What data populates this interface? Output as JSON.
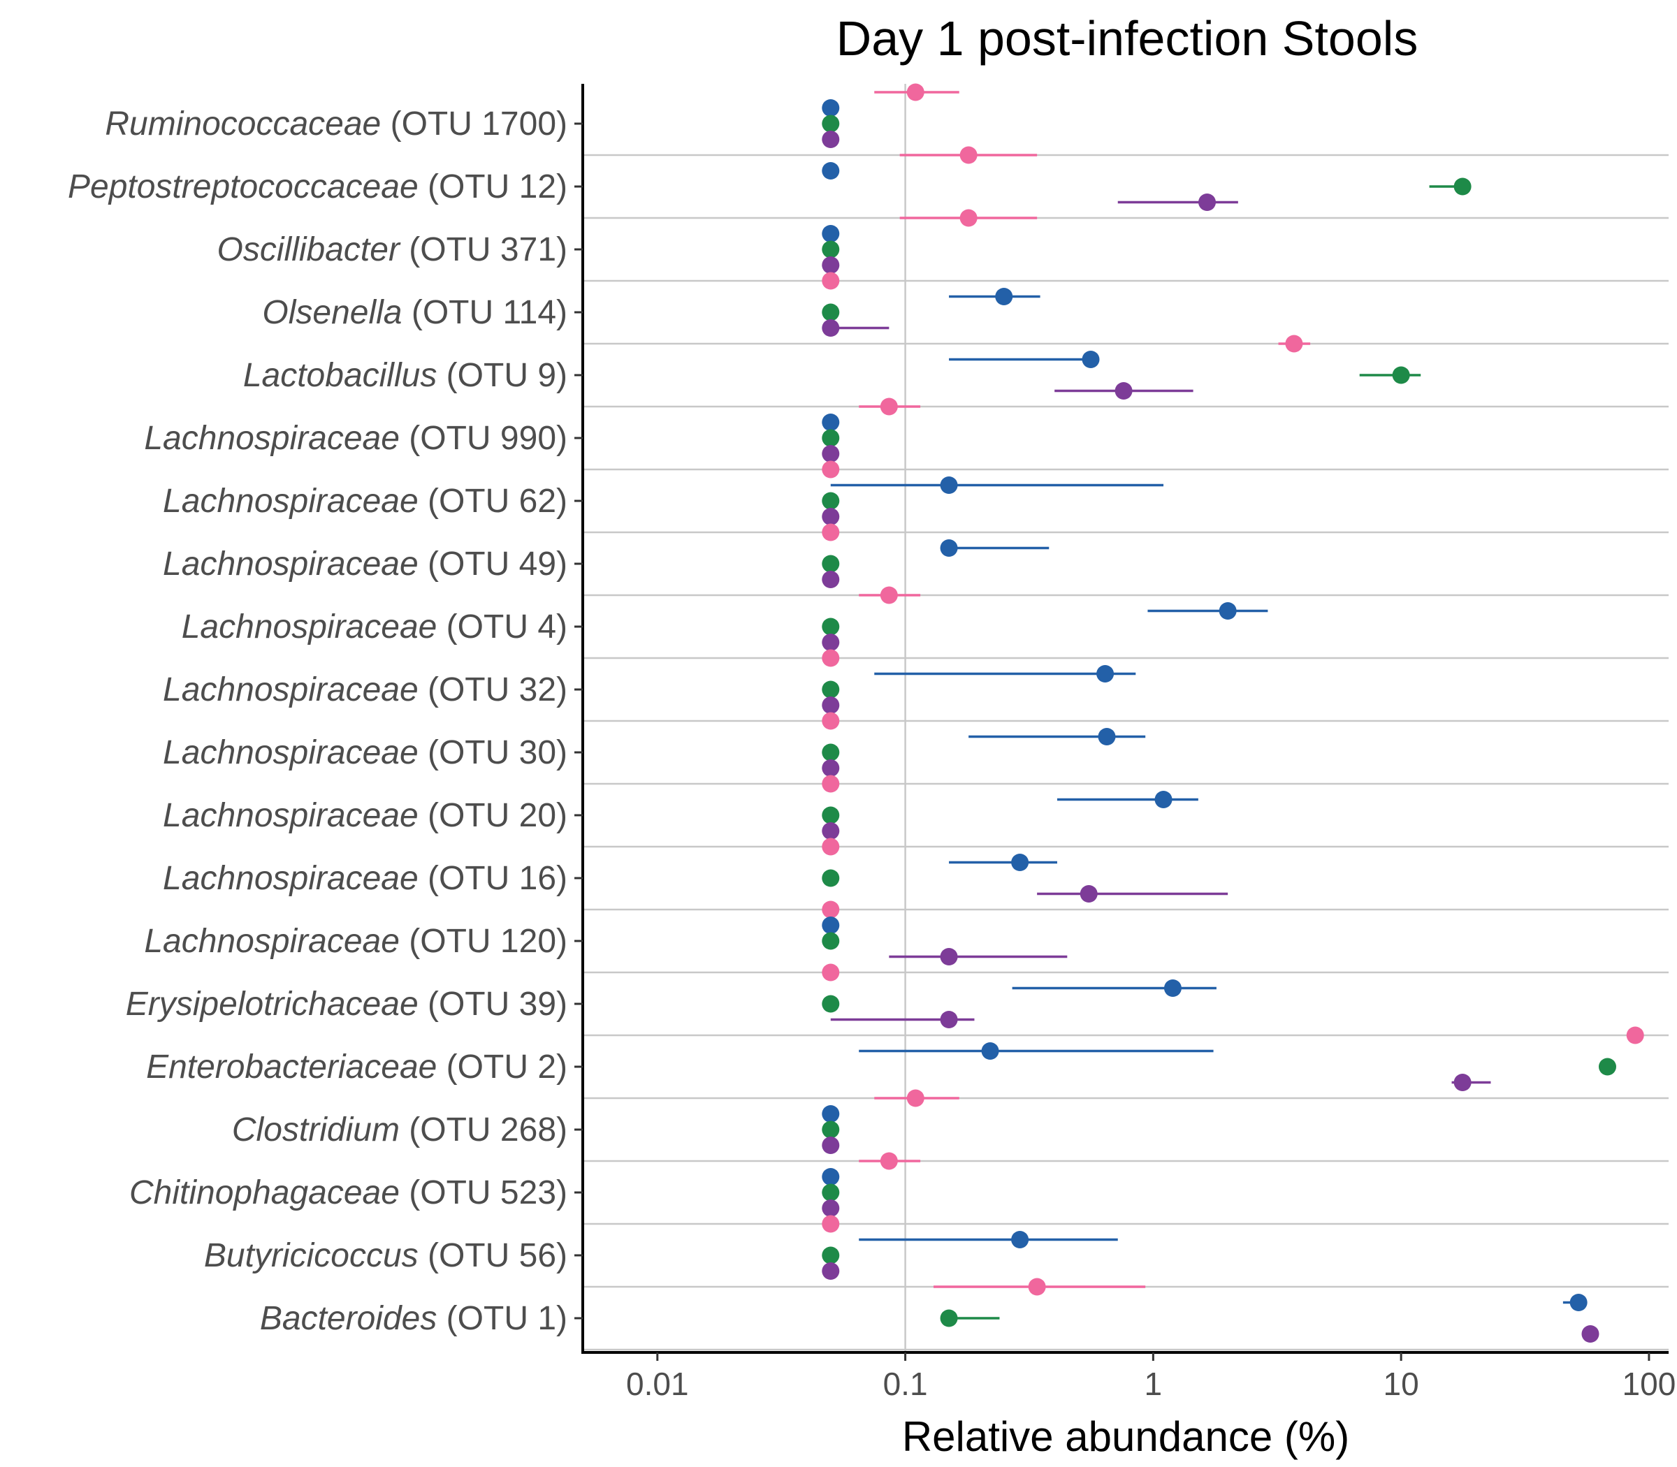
{
  "chart_data": {
    "type": "scatter",
    "title": "Day 1 post-infection Stools",
    "xlabel": "Relative abundance (%)",
    "ylabel": "",
    "x_scale": "log10",
    "xlim": [
      0.005,
      120
    ],
    "x_ticks": [
      0.01,
      0.1,
      1,
      10,
      100
    ],
    "x_tick_labels": [
      "0.01",
      "0.1",
      "1",
      "10",
      "100"
    ],
    "grid": "vertical line at 0.1, horizontal separators between rows",
    "legend": "none",
    "series_colors": {
      "blue": "#2360a8",
      "green": "#1e8a48",
      "purple": "#7d3c98",
      "pink": "#f0679d"
    },
    "categories": [
      {
        "name": "Ruminococcaceae",
        "otu": "(OTU 1700)"
      },
      {
        "name": "Peptostreptococcaceae",
        "otu": "(OTU 12)"
      },
      {
        "name": "Oscillibacter",
        "otu": "(OTU 371)"
      },
      {
        "name": "Olsenella",
        "otu": "(OTU 114)"
      },
      {
        "name": "Lactobacillus",
        "otu": "(OTU 9)"
      },
      {
        "name": "Lachnospiraceae",
        "otu": "(OTU 990)"
      },
      {
        "name": "Lachnospiraceae",
        "otu": "(OTU 62)"
      },
      {
        "name": "Lachnospiraceae",
        "otu": "(OTU 49)"
      },
      {
        "name": "Lachnospiraceae",
        "otu": "(OTU 4)"
      },
      {
        "name": "Lachnospiraceae",
        "otu": "(OTU 32)"
      },
      {
        "name": "Lachnospiraceae",
        "otu": "(OTU 30)"
      },
      {
        "name": "Lachnospiraceae",
        "otu": "(OTU 20)"
      },
      {
        "name": "Lachnospiraceae",
        "otu": "(OTU 16)"
      },
      {
        "name": "Lachnospiraceae",
        "otu": "(OTU 120)"
      },
      {
        "name": "Erysipelotrichaceae",
        "otu": "(OTU 39)"
      },
      {
        "name": "Enterobacteriaceae",
        "otu": "(OTU 2)"
      },
      {
        "name": "Clostridium",
        "otu": "(OTU 268)"
      },
      {
        "name": "Chitinophagaceae",
        "otu": "(OTU 523)"
      },
      {
        "name": "Butyricicoccus",
        "otu": "(OTU 56)"
      },
      {
        "name": "Bacteroides",
        "otu": "(OTU 1)"
      }
    ],
    "points": [
      {
        "cat": 0,
        "color": "pink",
        "slot": 0,
        "x": 0.11,
        "lo": 0.075,
        "hi": 0.165
      },
      {
        "cat": 0,
        "color": "blue",
        "slot": 1,
        "x": 0.05
      },
      {
        "cat": 0,
        "color": "green",
        "slot": 2,
        "x": 0.05
      },
      {
        "cat": 0,
        "color": "purple",
        "slot": 3,
        "x": 0.05
      },
      {
        "cat": 1,
        "color": "pink",
        "slot": 0,
        "x": 0.18,
        "lo": 0.095,
        "hi": 0.34
      },
      {
        "cat": 1,
        "color": "blue",
        "slot": 1,
        "x": 0.05
      },
      {
        "cat": 1,
        "color": "green",
        "slot": 2,
        "x": 17.7,
        "lo": 13,
        "hi": 18
      },
      {
        "cat": 1,
        "color": "purple",
        "slot": 3,
        "x": 1.65,
        "lo": 0.72,
        "hi": 2.2
      },
      {
        "cat": 2,
        "color": "pink",
        "slot": 0,
        "x": 0.18,
        "lo": 0.095,
        "hi": 0.34
      },
      {
        "cat": 2,
        "color": "blue",
        "slot": 1,
        "x": 0.05
      },
      {
        "cat": 2,
        "color": "green",
        "slot": 2,
        "x": 0.05
      },
      {
        "cat": 2,
        "color": "purple",
        "slot": 3,
        "x": 0.05
      },
      {
        "cat": 3,
        "color": "pink",
        "slot": 0,
        "x": 0.05
      },
      {
        "cat": 3,
        "color": "blue",
        "slot": 1,
        "x": 0.25,
        "lo": 0.15,
        "hi": 0.35
      },
      {
        "cat": 3,
        "color": "green",
        "slot": 2,
        "x": 0.05
      },
      {
        "cat": 3,
        "color": "purple",
        "slot": 3,
        "x": 0.05,
        "lo": 0.05,
        "hi": 0.086
      },
      {
        "cat": 4,
        "color": "pink",
        "slot": 0,
        "x": 3.7,
        "lo": 3.2,
        "hi": 4.3
      },
      {
        "cat": 4,
        "color": "blue",
        "slot": 1,
        "x": 0.56,
        "lo": 0.15,
        "hi": 0.56
      },
      {
        "cat": 4,
        "color": "green",
        "slot": 2,
        "x": 10,
        "lo": 6.8,
        "hi": 12
      },
      {
        "cat": 4,
        "color": "purple",
        "slot": 3,
        "x": 0.76,
        "lo": 0.4,
        "hi": 1.45
      },
      {
        "cat": 5,
        "color": "pink",
        "slot": 0,
        "x": 0.086,
        "lo": 0.065,
        "hi": 0.115
      },
      {
        "cat": 5,
        "color": "blue",
        "slot": 1,
        "x": 0.05
      },
      {
        "cat": 5,
        "color": "green",
        "slot": 2,
        "x": 0.05
      },
      {
        "cat": 5,
        "color": "purple",
        "slot": 3,
        "x": 0.05
      },
      {
        "cat": 6,
        "color": "pink",
        "slot": 0,
        "x": 0.05
      },
      {
        "cat": 6,
        "color": "blue",
        "slot": 1,
        "x": 0.15,
        "lo": 0.05,
        "hi": 1.1
      },
      {
        "cat": 6,
        "color": "green",
        "slot": 2,
        "x": 0.05
      },
      {
        "cat": 6,
        "color": "purple",
        "slot": 3,
        "x": 0.05
      },
      {
        "cat": 7,
        "color": "pink",
        "slot": 0,
        "x": 0.05
      },
      {
        "cat": 7,
        "color": "blue",
        "slot": 1,
        "x": 0.15,
        "lo": 0.15,
        "hi": 0.38
      },
      {
        "cat": 7,
        "color": "green",
        "slot": 2,
        "x": 0.05
      },
      {
        "cat": 7,
        "color": "purple",
        "slot": 3,
        "x": 0.05
      },
      {
        "cat": 8,
        "color": "pink",
        "slot": 0,
        "x": 0.086,
        "lo": 0.065,
        "hi": 0.115
      },
      {
        "cat": 8,
        "color": "blue",
        "slot": 1,
        "x": 2.0,
        "lo": 0.95,
        "hi": 2.9
      },
      {
        "cat": 8,
        "color": "green",
        "slot": 2,
        "x": 0.05
      },
      {
        "cat": 8,
        "color": "purple",
        "slot": 3,
        "x": 0.05
      },
      {
        "cat": 9,
        "color": "pink",
        "slot": 0,
        "x": 0.05
      },
      {
        "cat": 9,
        "color": "blue",
        "slot": 1,
        "x": 0.64,
        "lo": 0.075,
        "hi": 0.85
      },
      {
        "cat": 9,
        "color": "green",
        "slot": 2,
        "x": 0.05
      },
      {
        "cat": 9,
        "color": "purple",
        "slot": 3,
        "x": 0.05
      },
      {
        "cat": 10,
        "color": "pink",
        "slot": 0,
        "x": 0.05
      },
      {
        "cat": 10,
        "color": "blue",
        "slot": 1,
        "x": 0.65,
        "lo": 0.18,
        "hi": 0.93
      },
      {
        "cat": 10,
        "color": "green",
        "slot": 2,
        "x": 0.05
      },
      {
        "cat": 10,
        "color": "purple",
        "slot": 3,
        "x": 0.05
      },
      {
        "cat": 11,
        "color": "pink",
        "slot": 0,
        "x": 0.05
      },
      {
        "cat": 11,
        "color": "blue",
        "slot": 1,
        "x": 1.1,
        "lo": 0.41,
        "hi": 1.52
      },
      {
        "cat": 11,
        "color": "green",
        "slot": 2,
        "x": 0.05
      },
      {
        "cat": 11,
        "color": "purple",
        "slot": 3,
        "x": 0.05
      },
      {
        "cat": 12,
        "color": "pink",
        "slot": 0,
        "x": 0.05
      },
      {
        "cat": 12,
        "color": "blue",
        "slot": 1,
        "x": 0.29,
        "lo": 0.15,
        "hi": 0.41
      },
      {
        "cat": 12,
        "color": "green",
        "slot": 2,
        "x": 0.05
      },
      {
        "cat": 12,
        "color": "purple",
        "slot": 3,
        "x": 0.55,
        "lo": 0.34,
        "hi": 2.0
      },
      {
        "cat": 13,
        "color": "pink",
        "slot": 0,
        "x": 0.05
      },
      {
        "cat": 13,
        "color": "blue",
        "slot": 1,
        "x": 0.05
      },
      {
        "cat": 13,
        "color": "green",
        "slot": 2,
        "x": 0.05
      },
      {
        "cat": 13,
        "color": "purple",
        "slot": 3,
        "x": 0.15,
        "lo": 0.086,
        "hi": 0.45
      },
      {
        "cat": 14,
        "color": "pink",
        "slot": 0,
        "x": 0.05
      },
      {
        "cat": 14,
        "color": "blue",
        "slot": 1,
        "x": 1.2,
        "lo": 0.27,
        "hi": 1.8
      },
      {
        "cat": 14,
        "color": "green",
        "slot": 2,
        "x": 0.05
      },
      {
        "cat": 14,
        "color": "purple",
        "slot": 3,
        "x": 0.15,
        "lo": 0.05,
        "hi": 0.19
      },
      {
        "cat": 15,
        "color": "pink",
        "slot": 0,
        "x": 88
      },
      {
        "cat": 15,
        "color": "blue",
        "slot": 1,
        "x": 0.22,
        "lo": 0.065,
        "hi": 1.75
      },
      {
        "cat": 15,
        "color": "green",
        "slot": 2,
        "x": 68
      },
      {
        "cat": 15,
        "color": "purple",
        "slot": 3,
        "x": 17.7,
        "lo": 16,
        "hi": 23
      },
      {
        "cat": 16,
        "color": "pink",
        "slot": 0,
        "x": 0.11,
        "lo": 0.075,
        "hi": 0.165
      },
      {
        "cat": 16,
        "color": "blue",
        "slot": 1,
        "x": 0.05
      },
      {
        "cat": 16,
        "color": "green",
        "slot": 2,
        "x": 0.05
      },
      {
        "cat": 16,
        "color": "purple",
        "slot": 3,
        "x": 0.05
      },
      {
        "cat": 17,
        "color": "pink",
        "slot": 0,
        "x": 0.086,
        "lo": 0.065,
        "hi": 0.115
      },
      {
        "cat": 17,
        "color": "blue",
        "slot": 1,
        "x": 0.05
      },
      {
        "cat": 17,
        "color": "green",
        "slot": 2,
        "x": 0.05
      },
      {
        "cat": 17,
        "color": "purple",
        "slot": 3,
        "x": 0.05
      },
      {
        "cat": 18,
        "color": "pink",
        "slot": 0,
        "x": 0.05
      },
      {
        "cat": 18,
        "color": "blue",
        "slot": 1,
        "x": 0.29,
        "lo": 0.065,
        "hi": 0.72
      },
      {
        "cat": 18,
        "color": "green",
        "slot": 2,
        "x": 0.05
      },
      {
        "cat": 18,
        "color": "purple",
        "slot": 3,
        "x": 0.05
      },
      {
        "cat": 19,
        "color": "pink",
        "slot": 0,
        "x": 0.34,
        "lo": 0.13,
        "hi": 0.93
      },
      {
        "cat": 19,
        "color": "blue",
        "slot": 1,
        "x": 52,
        "lo": 45,
        "hi": 55
      },
      {
        "cat": 19,
        "color": "green",
        "slot": 2,
        "x": 0.15,
        "lo": 0.15,
        "hi": 0.24
      },
      {
        "cat": 19,
        "color": "purple",
        "slot": 3,
        "x": 58,
        "lo": 55,
        "hi": 62
      }
    ]
  }
}
